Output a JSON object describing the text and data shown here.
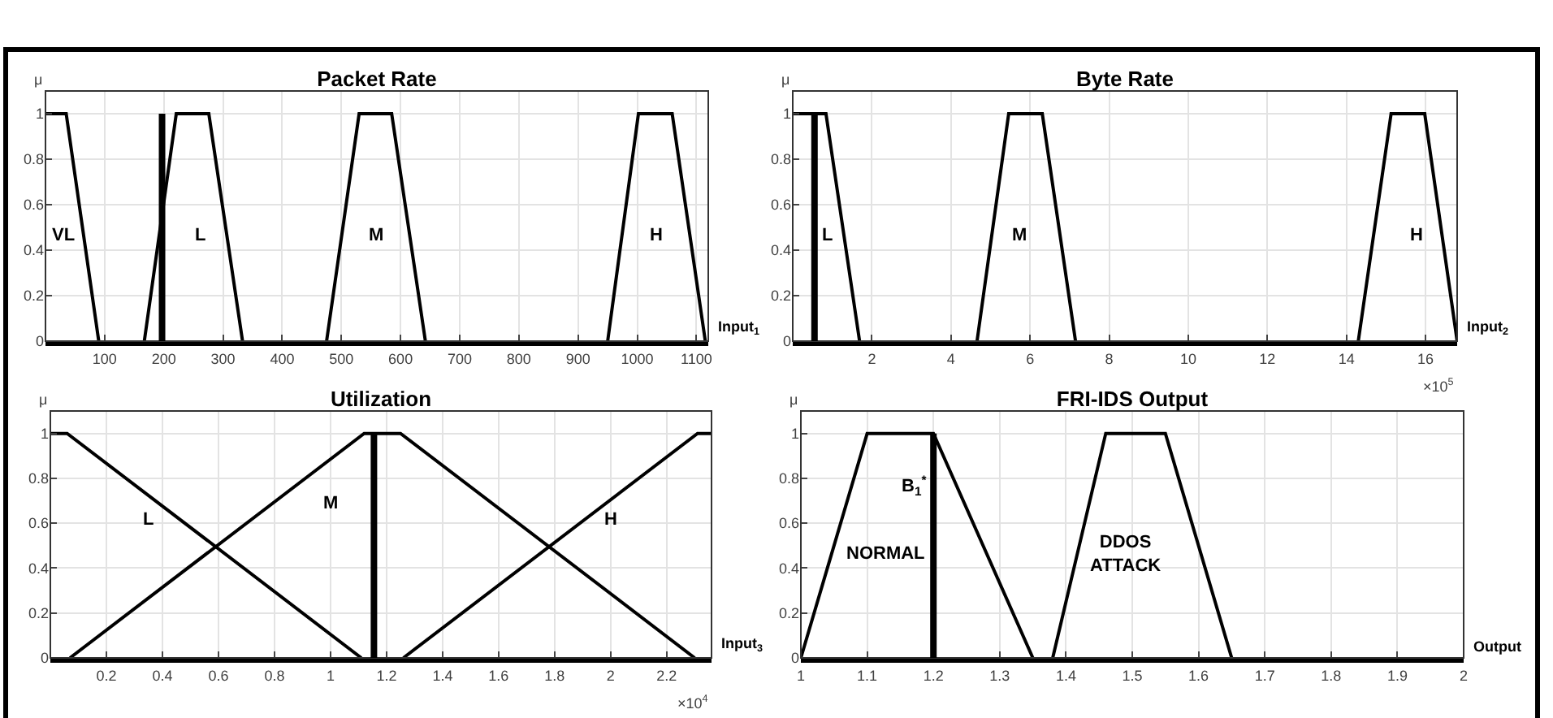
{
  "chart_data": [
    {
      "type": "line",
      "title": "Packet Rate",
      "xlabel": "Input$_{1}$",
      "ylabel": "μ",
      "xlim": [
        0,
        1120
      ],
      "xticks": [
        100,
        200,
        300,
        400,
        500,
        600,
        700,
        800,
        900,
        1000,
        1100
      ],
      "ylim": [
        0,
        1.1
      ],
      "yticks": [
        0,
        0.2,
        0.4,
        0.6,
        0.8,
        1
      ],
      "grid": true,
      "marker": "none",
      "line_style": "solid",
      "series": [
        {
          "name": "VL",
          "color": "#000000",
          "x": [
            0,
            35,
            90
          ],
          "values": [
            1,
            1,
            0
          ]
        },
        {
          "name": "L",
          "color": "#000000",
          "x": [
            167,
            221,
            276,
            333
          ],
          "values": [
            0,
            1,
            1,
            0
          ]
        },
        {
          "name": "M",
          "color": "#000000",
          "x": [
            475,
            530,
            585,
            642
          ],
          "values": [
            0,
            1,
            1,
            0
          ]
        },
        {
          "name": "H",
          "color": "#000000",
          "x": [
            950,
            1002,
            1059,
            1115
          ],
          "values": [
            0,
            1,
            1,
            0
          ]
        }
      ],
      "ref_lines": [
        {
          "axis": "x",
          "value": 197,
          "color": "#000000"
        }
      ]
    },
    {
      "type": "line",
      "title": "Byte Rate",
      "xlabel": "Input$_{2}$",
      "ylabel": "μ",
      "xlim": [
        0,
        16.8
      ],
      "xticks": [
        2,
        4,
        6,
        8,
        10,
        12,
        14,
        16
      ],
      "ylim": [
        0,
        1.1
      ],
      "yticks": [
        0,
        0.2,
        0.4,
        0.6,
        0.8,
        1
      ],
      "grid": true,
      "marker": "none",
      "line_style": "solid",
      "series": [
        {
          "name": "L",
          "color": "#000000",
          "x": [
            0,
            0.84,
            1.69
          ],
          "values": [
            1,
            1,
            0
          ]
        },
        {
          "name": "M",
          "color": "#000000",
          "x": [
            4.66,
            5.46,
            6.31,
            7.15
          ],
          "values": [
            0,
            1,
            1,
            0
          ]
        },
        {
          "name": "H",
          "color": "#000000",
          "x": [
            14.3,
            15.13,
            15.98,
            16.8
          ],
          "values": [
            0,
            1,
            1,
            0
          ]
        }
      ],
      "ref_lines": [
        {
          "axis": "x",
          "value": 0.55,
          "color": "#000000"
        }
      ],
      "annotations": [
        "×10$^{5}$"
      ]
    },
    {
      "type": "line",
      "title": "Utilization",
      "xlabel": "Input$_{3}$",
      "ylabel": "μ",
      "xlim": [
        0,
        2.36
      ],
      "xticks": [
        0.2,
        0.4,
        0.6,
        0.8,
        1,
        1.2,
        1.4,
        1.6,
        1.8,
        2,
        2.2
      ],
      "ylim": [
        0,
        1.1
      ],
      "yticks": [
        0,
        0.2,
        0.4,
        0.6,
        0.8,
        1
      ],
      "grid": true,
      "marker": "none",
      "line_style": "solid",
      "series": [
        {
          "name": "L",
          "color": "#000000",
          "x": [
            0,
            0.06,
            1.11
          ],
          "values": [
            1,
            1,
            0
          ]
        },
        {
          "name": "M",
          "color": "#000000",
          "x": [
            0.07,
            1.12,
            1.25,
            2.3
          ],
          "values": [
            0,
            1,
            1,
            0
          ]
        },
        {
          "name": "H",
          "color": "#000000",
          "x": [
            1.26,
            2.31,
            2.36
          ],
          "values": [
            0,
            1,
            1
          ]
        }
      ],
      "ref_lines": [
        {
          "axis": "x",
          "value": 1.155,
          "color": "#000000"
        }
      ],
      "annotations": [
        "×10$^{4}$"
      ]
    },
    {
      "type": "line",
      "title": "FRI-IDS Output",
      "xlabel": "Output",
      "ylabel": "μ",
      "xlim": [
        1,
        2
      ],
      "xticks": [
        1,
        1.1,
        1.2,
        1.3,
        1.4,
        1.5,
        1.6,
        1.7,
        1.8,
        1.9,
        2
      ],
      "ylim": [
        0,
        1.1
      ],
      "yticks": [
        0,
        0.2,
        0.4,
        0.6,
        0.8,
        1
      ],
      "grid": true,
      "marker": "none",
      "line_style": "solid",
      "series": [
        {
          "name": "NORMAL",
          "color": "#000000",
          "x": [
            1,
            1.1,
            1.2,
            1.35
          ],
          "values": [
            0,
            1,
            1,
            0
          ]
        },
        {
          "name": "DDOS\nATTACK",
          "color": "#000000",
          "x": [
            1.38,
            1.46,
            1.55,
            1.65
          ],
          "values": [
            0,
            1,
            1,
            0
          ]
        }
      ],
      "ref_lines": [
        {
          "axis": "x",
          "value": 1.2,
          "color": "#000000",
          "label": "B$_{1}$$^{*}$"
        }
      ]
    }
  ]
}
